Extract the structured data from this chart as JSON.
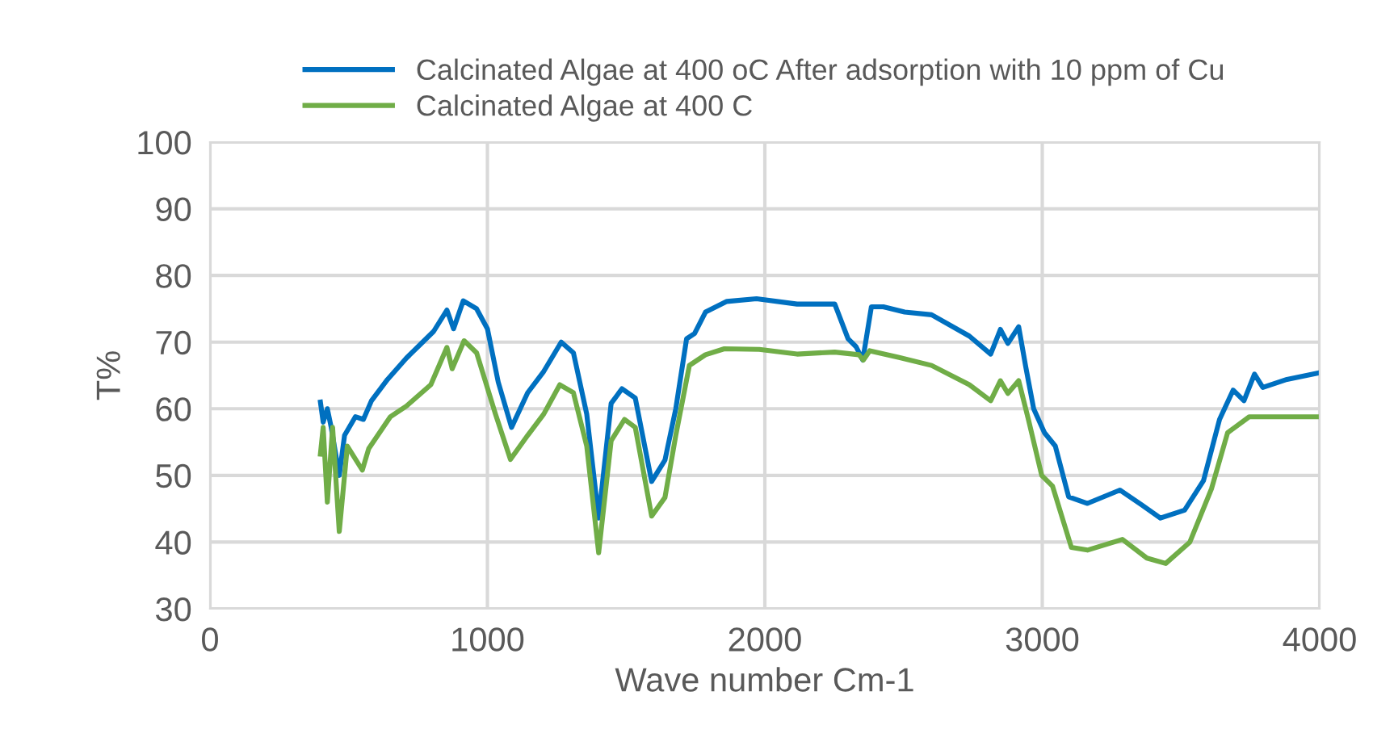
{
  "chart_data": {
    "type": "line",
    "xlabel": "Wave number Cm-1",
    "ylabel": "T%",
    "xlim": [
      0,
      4000
    ],
    "xticks": [
      0,
      1000,
      2000,
      3000,
      4000
    ],
    "ylim": [
      30,
      100
    ],
    "yticks": [
      30,
      40,
      50,
      60,
      70,
      80,
      90,
      100
    ],
    "grid": true,
    "legend": "top",
    "line_style": "solid",
    "marker": "none",
    "series": [
      {
        "name": "Calcinated Algae at 400 oC After adsorption with 10 ppm of Cu",
        "color": "#0070c0",
        "x": [
          398,
          408,
          423,
          437,
          466,
          485,
          524,
          553,
          582,
          640,
          708,
          757,
          806,
          854,
          878,
          913,
          961,
          1000,
          1039,
          1087,
          1145,
          1203,
          1266,
          1310,
          1358,
          1401,
          1446,
          1485,
          1533,
          1592,
          1640,
          1679,
          1718,
          1747,
          1786,
          1863,
          1970,
          2116,
          2252,
          2300,
          2329,
          2353,
          2384,
          2427,
          2504,
          2601,
          2737,
          2814,
          2849,
          2876,
          2915,
          2940,
          2969,
          3008,
          3047,
          3095,
          3163,
          3280,
          3358,
          3426,
          3513,
          3581,
          3639,
          3688,
          3727,
          3765,
          3795,
          3882,
          3998
        ],
        "values": [
          61,
          58,
          60,
          57.2,
          50,
          56,
          58.8,
          58.4,
          61.2,
          64.4,
          67.6,
          69.6,
          71.6,
          74.8,
          72,
          76.2,
          75,
          72,
          64,
          57.2,
          62.4,
          65.6,
          70,
          68.4,
          59.2,
          43.6,
          60.8,
          63,
          61.6,
          49.1,
          52.3,
          60,
          70.5,
          71.3,
          74.5,
          76.1,
          76.5,
          75.7,
          75.7,
          70.5,
          69.3,
          67.3,
          75.3,
          75.3,
          74.5,
          74.1,
          70.9,
          68.2,
          71.9,
          69.8,
          72.3,
          66.4,
          60,
          56.4,
          54.4,
          46.8,
          45.8,
          47.8,
          45.6,
          43.6,
          44.8,
          49.2,
          58.4,
          62.8,
          61.2,
          65.2,
          63.2,
          64.4,
          65.4
        ]
      },
      {
        "name": "Calcinated Algae at 400 C",
        "color": "#70ad47",
        "x": [
          398,
          408,
          423,
          442,
          466,
          495,
          549,
          572,
          650,
          708,
          796,
          854,
          873,
          916,
          961,
          1029,
          1083,
          1145,
          1203,
          1261,
          1310,
          1358,
          1401,
          1446,
          1494,
          1533,
          1592,
          1640,
          1679,
          1728,
          1786,
          1854,
          1980,
          2116,
          2252,
          2339,
          2355,
          2378,
          2484,
          2601,
          2737,
          2814,
          2849,
          2876,
          2915,
          2950,
          2998,
          3037,
          3105,
          3163,
          3289,
          3377,
          3445,
          3532,
          3610,
          3668,
          3746,
          3882,
          3998
        ],
        "values": [
          53.2,
          57.2,
          46,
          57.2,
          41.6,
          54.4,
          50.8,
          54,
          58.8,
          60.4,
          63.6,
          69.2,
          66,
          70.2,
          68.4,
          59.2,
          52.4,
          56,
          59.2,
          63.6,
          62.4,
          54.4,
          38.4,
          55.2,
          58.4,
          57.2,
          43.9,
          46.7,
          56,
          66.5,
          68.1,
          69,
          68.9,
          68.2,
          68.5,
          68.1,
          67.3,
          68.7,
          67.7,
          66.5,
          63.6,
          61.2,
          64.2,
          62.3,
          64.2,
          58.4,
          50,
          48.4,
          39.2,
          38.8,
          40.4,
          37.6,
          36.8,
          40,
          48,
          56.4,
          58.8,
          58.8,
          58.8
        ]
      }
    ]
  }
}
